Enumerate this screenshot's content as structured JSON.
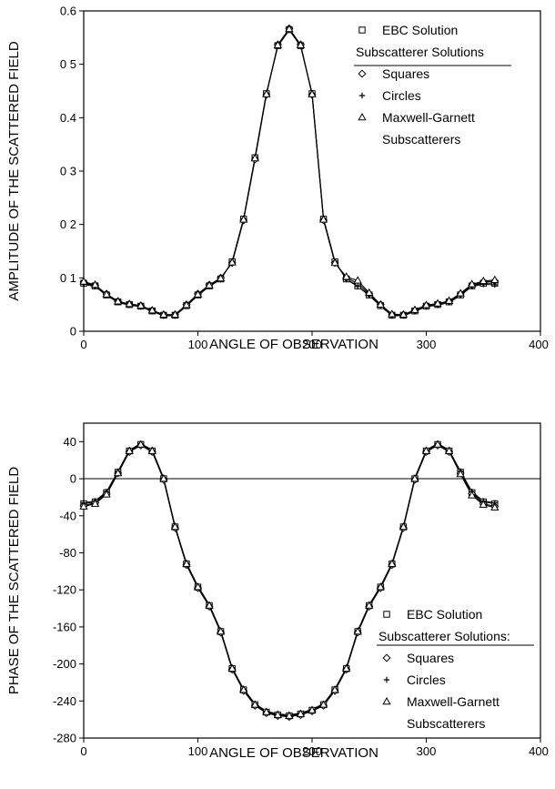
{
  "chart_data": [
    {
      "type": "line",
      "xlabel": "ANGLE OF OBSERVATION",
      "ylabel": "AMPLITUDE OF THE SCATTERED FIELD",
      "xlim": [
        0,
        400
      ],
      "ylim": [
        0,
        0.6
      ],
      "xticks": [
        0,
        100,
        200,
        300,
        400
      ],
      "yticks": [
        0,
        0.1,
        0.2,
        0.3,
        0.4,
        0.5,
        0.6
      ],
      "ytick_labels": [
        "0",
        "0 1",
        "0 2",
        "0 3",
        "0.4",
        "0 5",
        "0.6"
      ],
      "legend": {
        "position": "top-right",
        "entries": [
          "EBC Solution",
          "Subscatterer Solutions",
          "Squares",
          "Circles",
          "Maxwell-Garnett",
          "Subscatterers"
        ]
      },
      "x": [
        0,
        10,
        20,
        30,
        40,
        50,
        60,
        70,
        80,
        90,
        100,
        110,
        120,
        130,
        140,
        150,
        160,
        170,
        180,
        190,
        200,
        210,
        220,
        230,
        240,
        250,
        260,
        270,
        280,
        290,
        300,
        310,
        320,
        330,
        340,
        350,
        360
      ],
      "series": [
        {
          "name": "EBC Solution",
          "marker": "square",
          "values": [
            0.09,
            0.085,
            0.068,
            0.055,
            0.05,
            0.047,
            0.038,
            0.03,
            0.03,
            0.048,
            0.068,
            0.085,
            0.098,
            0.13,
            0.21,
            0.325,
            0.445,
            0.535,
            0.565,
            0.535,
            0.445,
            0.21,
            0.13,
            0.098,
            0.085,
            0.068,
            0.048,
            0.03,
            0.03,
            0.038,
            0.047,
            0.05,
            0.055,
            0.068,
            0.085,
            0.09,
            0.09
          ]
        },
        {
          "name": "Squares",
          "marker": "diamond",
          "values": [
            0.092,
            0.086,
            0.07,
            0.056,
            0.051,
            0.048,
            0.039,
            0.031,
            0.031,
            0.05,
            0.07,
            0.087,
            0.1,
            0.128,
            0.208,
            0.322,
            0.443,
            0.537,
            0.567,
            0.537,
            0.443,
            0.208,
            0.128,
            0.1,
            0.09,
            0.07,
            0.05,
            0.031,
            0.031,
            0.039,
            0.048,
            0.051,
            0.056,
            0.07,
            0.086,
            0.092,
            0.094
          ]
        },
        {
          "name": "Circles",
          "marker": "plus",
          "values": [
            0.088,
            0.084,
            0.067,
            0.054,
            0.049,
            0.046,
            0.037,
            0.029,
            0.029,
            0.047,
            0.067,
            0.084,
            0.097,
            0.131,
            0.211,
            0.326,
            0.446,
            0.534,
            0.564,
            0.534,
            0.446,
            0.211,
            0.131,
            0.097,
            0.084,
            0.067,
            0.047,
            0.029,
            0.029,
            0.037,
            0.046,
            0.049,
            0.054,
            0.067,
            0.084,
            0.088,
            0.087
          ]
        },
        {
          "name": "Maxwell-Garnett Subscatterers",
          "marker": "triangle",
          "values": [
            0.093,
            0.087,
            0.069,
            0.056,
            0.051,
            0.048,
            0.039,
            0.031,
            0.031,
            0.049,
            0.069,
            0.086,
            0.099,
            0.129,
            0.209,
            0.324,
            0.444,
            0.536,
            0.566,
            0.536,
            0.444,
            0.209,
            0.128,
            0.102,
            0.095,
            0.072,
            0.05,
            0.032,
            0.031,
            0.04,
            0.049,
            0.052,
            0.057,
            0.071,
            0.088,
            0.094,
            0.096
          ]
        }
      ]
    },
    {
      "type": "line",
      "xlabel": "ANGLE OF OBSERVATION",
      "ylabel": "PHASE OF THE SCATTERED FIELD",
      "xlim": [
        0,
        400
      ],
      "ylim": [
        -280,
        60
      ],
      "xticks": [
        0,
        100,
        200,
        300,
        400
      ],
      "yticks": [
        -280,
        -240,
        -200,
        -160,
        -120,
        -80,
        -40,
        0,
        40
      ],
      "ytick_labels": [
        "-280",
        "-240",
        "-200",
        "-160",
        "-120",
        "-80",
        "-40",
        "0",
        "40"
      ],
      "reference_line_y": 0,
      "legend": {
        "position": "bottom-right",
        "entries": [
          "EBC Solution",
          "Subscatterer Solutions:",
          "Squares",
          "Circles",
          "Maxwell-Garnett",
          "Subscatterers"
        ]
      },
      "x": [
        0,
        10,
        20,
        30,
        40,
        50,
        60,
        70,
        80,
        90,
        100,
        110,
        120,
        130,
        140,
        150,
        160,
        170,
        180,
        190,
        200,
        210,
        220,
        230,
        240,
        250,
        260,
        270,
        280,
        290,
        300,
        310,
        320,
        330,
        340,
        350,
        360
      ],
      "series": [
        {
          "name": "EBC Solution",
          "marker": "square",
          "values": [
            -27,
            -25,
            -15,
            7,
            30,
            37,
            30,
            0,
            -52,
            -92,
            -117,
            -137,
            -165,
            -205,
            -228,
            -244,
            -252,
            -255,
            -256,
            -254,
            -250,
            -244,
            -228,
            -205,
            -165,
            -137,
            -117,
            -92,
            -52,
            0,
            30,
            37,
            30,
            7,
            -15,
            -25,
            -27
          ]
        },
        {
          "name": "Squares",
          "marker": "diamond",
          "values": [
            -29,
            -26,
            -16,
            6,
            29,
            36,
            29,
            -1,
            -53,
            -93,
            -118,
            -138,
            -166,
            -206,
            -229,
            -245,
            -253,
            -256,
            -257,
            -255,
            -251,
            -245,
            -229,
            -206,
            -166,
            -138,
            -118,
            -93,
            -53,
            -1,
            29,
            36,
            29,
            6,
            -16,
            -27,
            -30
          ]
        },
        {
          "name": "Circles",
          "marker": "plus",
          "values": [
            -26,
            -24,
            -14,
            8,
            31,
            38,
            31,
            1,
            -51,
            -91,
            -116,
            -136,
            -164,
            -204,
            -227,
            -243,
            -251,
            -254,
            -255,
            -253,
            -249,
            -243,
            -227,
            -204,
            -164,
            -136,
            -116,
            -91,
            -51,
            1,
            31,
            38,
            31,
            8,
            -14,
            -24,
            -26
          ]
        },
        {
          "name": "Maxwell-Garnett Subscatterers",
          "marker": "triangle",
          "values": [
            -30,
            -27,
            -17,
            6,
            30,
            37,
            30,
            0,
            -52,
            -92,
            -117,
            -137,
            -165,
            -205,
            -228,
            -244,
            -252,
            -255,
            -256,
            -254,
            -250,
            -244,
            -228,
            -205,
            -165,
            -137,
            -117,
            -92,
            -52,
            0,
            30,
            37,
            30,
            5,
            -18,
            -28,
            -31
          ]
        }
      ]
    }
  ]
}
